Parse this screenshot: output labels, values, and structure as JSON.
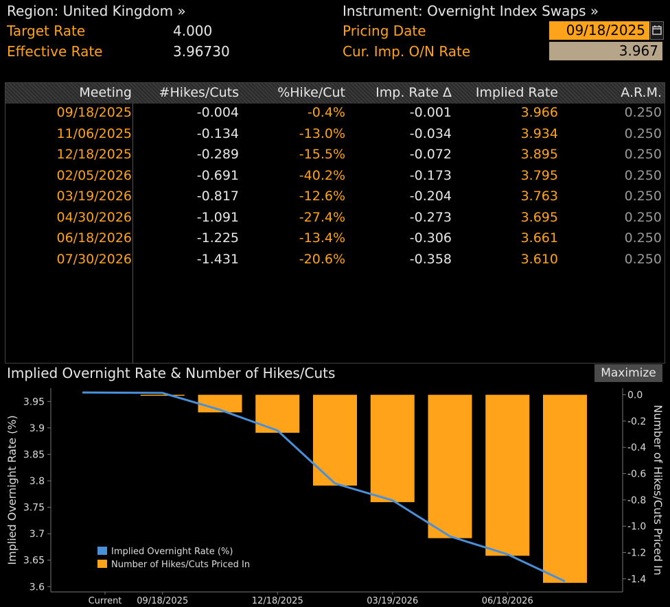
{
  "header": {
    "region": "Region: United Kingdom »",
    "instrument": "Instrument: Overnight Index Swaps »",
    "target_rate_label": "Target Rate",
    "target_rate_value": "4.000",
    "effective_rate_label": "Effective Rate",
    "effective_rate_value": "3.96730",
    "pricing_date_label": "Pricing Date",
    "pricing_date_value": "09/18/2025",
    "cur_imp_label": "Cur. Imp. O/N Rate",
    "cur_imp_value": "3.967"
  },
  "table": {
    "columns": [
      "Meeting",
      "#Hikes/Cuts",
      "%Hike/Cut",
      "Imp. Rate Δ",
      "Implied Rate",
      "A.R.M."
    ],
    "rows": [
      [
        "09/18/2025",
        "-0.004",
        "-0.4%",
        "-0.001",
        "3.966",
        "0.250"
      ],
      [
        "11/06/2025",
        "-0.134",
        "-13.0%",
        "-0.034",
        "3.934",
        "0.250"
      ],
      [
        "12/18/2025",
        "-0.289",
        "-15.5%",
        "-0.072",
        "3.895",
        "0.250"
      ],
      [
        "02/05/2026",
        "-0.691",
        "-40.2%",
        "-0.173",
        "3.795",
        "0.250"
      ],
      [
        "03/19/2026",
        "-0.817",
        "-12.6%",
        "-0.204",
        "3.763",
        "0.250"
      ],
      [
        "04/30/2026",
        "-1.091",
        "-27.4%",
        "-0.273",
        "3.695",
        "0.250"
      ],
      [
        "06/18/2026",
        "-1.225",
        "-13.4%",
        "-0.306",
        "3.661",
        "0.250"
      ],
      [
        "07/30/2026",
        "-1.431",
        "-20.6%",
        "-0.358",
        "3.610",
        "0.250"
      ]
    ]
  },
  "chart_title": "Implied Overnight Rate & Number of Hikes/Cuts",
  "maximize_label": "Maximize",
  "colors": {
    "orange": "#ffa31a",
    "line": "#4a90d9",
    "background": "#000000"
  },
  "chart_data": {
    "type": "bar",
    "categories": [
      "Current",
      "09/18/2025",
      "11/06/2025",
      "12/18/2025",
      "02/05/2026",
      "03/19/2026",
      "04/30/2026",
      "06/18/2026",
      "07/30/2026"
    ],
    "x_tick_labels": [
      "Current",
      "09/18/2025",
      "12/18/2025",
      "03/19/2026",
      "06/18/2026"
    ],
    "series": [
      {
        "name": "Implied Overnight Rate (%)",
        "type": "line",
        "axis": "left",
        "values": [
          3.967,
          3.966,
          3.934,
          3.895,
          3.795,
          3.763,
          3.695,
          3.661,
          3.61
        ]
      },
      {
        "name": "Number of Hikes/Cuts Priced In",
        "type": "bar",
        "axis": "right",
        "values": [
          0,
          -0.004,
          -0.134,
          -0.289,
          -0.691,
          -0.817,
          -1.091,
          -1.225,
          -1.431
        ]
      }
    ],
    "ylabel": "Implied Overnight Rate (%)",
    "ylabel_right": "Number of Hikes/Cuts Priced In",
    "left_ticks": [
      "3.95",
      "3.9",
      "3.85",
      "3.8",
      "3.75",
      "3.7",
      "3.65",
      "3.6"
    ],
    "right_ticks": [
      "0.0",
      "-0.2",
      "-0.4",
      "-0.6",
      "-0.8",
      "-1.0",
      "-1.2",
      "-1.4"
    ],
    "ylim_left": [
      3.59,
      3.975
    ],
    "ylim_right": [
      -1.5,
      0.05
    ],
    "legend_placement": "bottom-left",
    "grid": false
  }
}
